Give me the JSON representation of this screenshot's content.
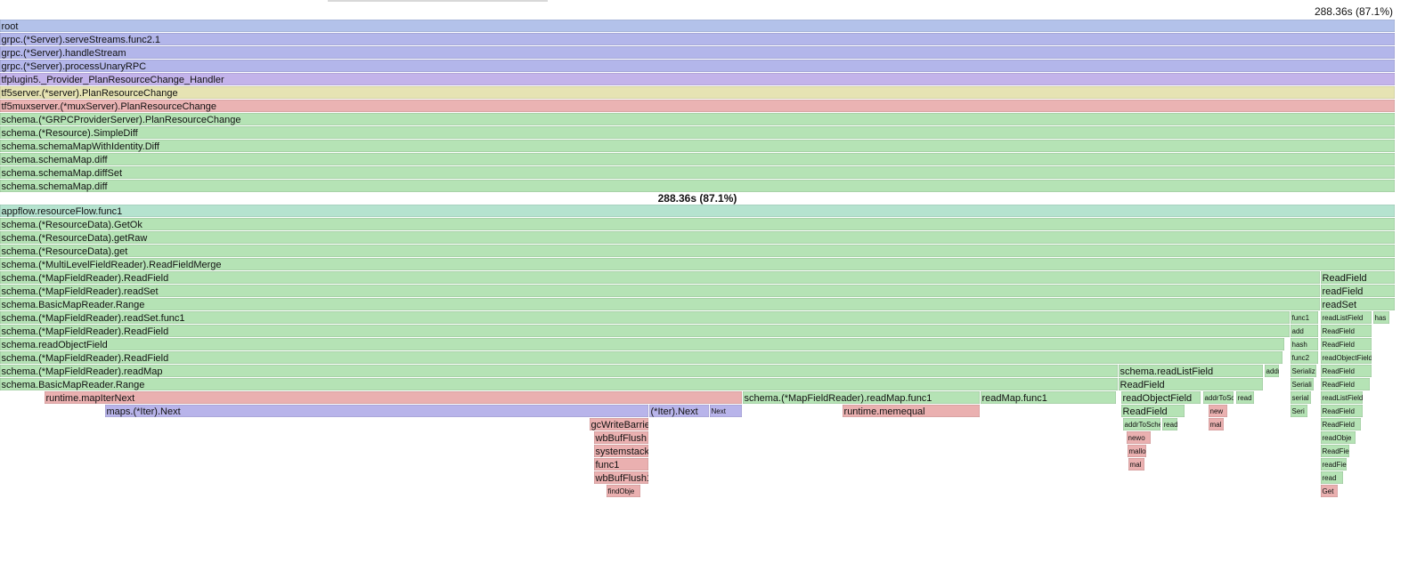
{
  "chart_data": {
    "type": "flame",
    "focus_label": "288.36s (87.1%)",
    "xlim": [
      0,
      288.36
    ],
    "upper": [
      {
        "name": "root",
        "start": 0,
        "value": 288.36,
        "color": "#b3c2ea"
      },
      {
        "name": "grpc.(*Server).serveStreams.func2.1",
        "start": 0,
        "value": 288.36,
        "color": "#b3b6ea"
      },
      {
        "name": "grpc.(*Server).handleStream",
        "start": 0,
        "value": 288.36,
        "color": "#b3b6ea"
      },
      {
        "name": "grpc.(*Server).processUnaryRPC",
        "start": 0,
        "value": 288.36,
        "color": "#b3b6ea"
      },
      {
        "name": "tfplugin5._Provider_PlanResourceChange_Handler",
        "start": 0,
        "value": 288.36,
        "color": "#c3b3ea"
      },
      {
        "name": "tf5server.(*server).PlanResourceChange",
        "start": 0,
        "value": 288.36,
        "color": "#e6e3b3"
      },
      {
        "name": "tf5muxserver.(*muxServer).PlanResourceChange",
        "start": 0,
        "value": 288.36,
        "color": "#eab3b3"
      },
      {
        "name": "schema.(*GRPCProviderServer).PlanResourceChange",
        "start": 0,
        "value": 288.36,
        "color": "#b5e3b5"
      },
      {
        "name": "schema.(*Resource).SimpleDiff",
        "start": 0,
        "value": 288.36,
        "color": "#b5e3b5"
      },
      {
        "name": "schema.schemaMapWithIdentity.Diff",
        "start": 0,
        "value": 288.36,
        "color": "#b5e3b5"
      },
      {
        "name": "schema.schemaMap.diff",
        "start": 0,
        "value": 288.36,
        "color": "#b5e3b5"
      },
      {
        "name": "schema.schemaMap.diffSet",
        "start": 0,
        "value": 288.36,
        "color": "#b5e3b5"
      },
      {
        "name": "schema.schemaMap.diff",
        "start": 0,
        "value": 288.36,
        "color": "#b5e3b5"
      }
    ],
    "rows": [
      [
        {
          "name": "appflow.resourceFlow.func1",
          "start": 0,
          "value": 288.36,
          "color": "#b5e3cf"
        }
      ],
      [
        {
          "name": "schema.(*ResourceData).GetOk",
          "start": 0,
          "value": 288.36,
          "color": "#b5e3b5"
        }
      ],
      [
        {
          "name": "schema.(*ResourceData).getRaw",
          "start": 0,
          "value": 288.36,
          "color": "#b5e3b5"
        }
      ],
      [
        {
          "name": "schema.(*ResourceData).get",
          "start": 0,
          "value": 288.36,
          "color": "#b5e3b5"
        }
      ],
      [
        {
          "name": "schema.(*MultiLevelFieldReader).ReadFieldMerge",
          "start": 0,
          "value": 288.36,
          "color": "#b5e3b5"
        }
      ],
      [
        {
          "name": "schema.(*MapFieldReader).ReadField",
          "start": 0,
          "value": 272.9,
          "color": "#b5e3b5"
        },
        {
          "name": "ReadField",
          "start": 273.08,
          "value": 15.28,
          "color": "#b5e3b5"
        }
      ],
      [
        {
          "name": "schema.(*MapFieldReader).readSet",
          "start": 0,
          "value": 272.9,
          "color": "#b5e3b5"
        },
        {
          "name": "readField",
          "start": 273.08,
          "value": 15.28,
          "color": "#b5e3b5"
        }
      ],
      [
        {
          "name": "schema.BasicMapReader.Range",
          "start": 0,
          "value": 272.9,
          "color": "#b5e3b5"
        },
        {
          "name": "readSet",
          "start": 273.08,
          "value": 15.28,
          "color": "#b5e3b5"
        }
      ],
      [
        {
          "name": "schema.(*MapFieldReader).readSet.func1",
          "start": 0,
          "value": 266.63,
          "color": "#b5e3b5"
        },
        {
          "name": "func1",
          "start": 266.82,
          "value": 5.71,
          "color": "#b5e3b5"
        },
        {
          "name": "readListField",
          "start": 273.08,
          "value": 10.5,
          "color": "#b5e3b5"
        },
        {
          "name": "has",
          "start": 283.94,
          "value": 3.31,
          "color": "#b5e3b5"
        }
      ],
      [
        {
          "name": "schema.(*MapFieldReader).ReadField",
          "start": 0,
          "value": 266.63,
          "color": "#b5e3b5"
        },
        {
          "name": "add",
          "start": 266.82,
          "value": 5.71,
          "color": "#b5e3b5"
        },
        {
          "name": "ReadField",
          "start": 273.08,
          "value": 10.5,
          "color": "#b5e3b5"
        }
      ],
      [
        {
          "name": "schema.readObjectField",
          "start": 0,
          "value": 265.53,
          "color": "#b5e3b5"
        },
        {
          "name": "hash",
          "start": 266.82,
          "value": 5.71,
          "color": "#b5e3b5"
        },
        {
          "name": "ReadField",
          "start": 273.08,
          "value": 10.5,
          "color": "#b5e3b5"
        }
      ],
      [
        {
          "name": "schema.(*MapFieldReader).ReadField",
          "start": 0,
          "value": 265.16,
          "color": "#b5e3b5"
        },
        {
          "name": "func2",
          "start": 266.82,
          "value": 5.71,
          "color": "#b5e3b5"
        },
        {
          "name": "readObjectField",
          "start": 273.08,
          "value": 10.5,
          "color": "#b5e3b5"
        }
      ],
      [
        {
          "name": "schema.(*MapFieldReader).readMap",
          "start": 0,
          "value": 231.1,
          "color": "#b5e3b5"
        },
        {
          "name": "schema.readListField",
          "start": 231.28,
          "value": 29.83,
          "color": "#b5e3b5"
        },
        {
          "name": "addr",
          "start": 261.48,
          "value": 2.95,
          "color": "#b5e3b5"
        },
        {
          "name": "Serializ",
          "start": 266.82,
          "value": 5.34,
          "color": "#b5e3b5"
        },
        {
          "name": "ReadField",
          "start": 273.08,
          "value": 10.5,
          "color": "#b5e3b5"
        }
      ],
      [
        {
          "name": "schema.BasicMapReader.Range",
          "start": 0,
          "value": 231.1,
          "color": "#b5e3b5"
        },
        {
          "name": "ReadField",
          "start": 231.28,
          "value": 29.83,
          "color": "#b5e3b5"
        },
        {
          "name": "Seriali",
          "start": 266.82,
          "value": 4.79,
          "color": "#b5e3b5"
        },
        {
          "name": "ReadField",
          "start": 273.08,
          "value": 10.13,
          "color": "#b5e3b5"
        }
      ],
      [
        {
          "name": "runtime.mapIterNext",
          "start": 9.21,
          "value": 144.18,
          "color": "#eab0b0"
        },
        {
          "name": "schema.(*MapFieldReader).readMap.func1",
          "start": 153.57,
          "value": 48.98,
          "color": "#b5e3b5"
        },
        {
          "name": "readMap.func1",
          "start": 202.74,
          "value": 27.99,
          "color": "#b5e3b5"
        },
        {
          "name": "readObjectField",
          "start": 231.83,
          "value": 16.39,
          "color": "#b5e3b5"
        },
        {
          "name": "addrToSc",
          "start": 248.77,
          "value": 6.26,
          "color": "#b5e3b5"
        },
        {
          "name": "read",
          "start": 255.59,
          "value": 3.68,
          "color": "#b5e3b5"
        },
        {
          "name": "serial",
          "start": 266.82,
          "value": 4.24,
          "color": "#b5e3b5"
        },
        {
          "name": "readListField",
          "start": 273.08,
          "value": 8.65,
          "color": "#b5e3b5"
        }
      ],
      [
        {
          "name": "maps.(*Iter).Next",
          "start": 21.73,
          "value": 112.33,
          "color": "#b8b4ea"
        },
        {
          "name": "(*Iter).Next",
          "start": 134.24,
          "value": 12.34,
          "color": "#b8b4ea"
        },
        {
          "name": "Next",
          "start": 146.76,
          "value": 6.63,
          "color": "#b8b4ea"
        },
        {
          "name": "runtime.memequal",
          "start": 174.2,
          "value": 28.36,
          "color": "#eab0b0"
        },
        {
          "name": "ReadField",
          "start": 231.83,
          "value": 13.07,
          "color": "#b5e3b5"
        },
        {
          "name": "new",
          "start": 249.88,
          "value": 3.87,
          "color": "#eab0b0"
        },
        {
          "name": "Seri",
          "start": 266.82,
          "value": 3.5,
          "color": "#b5e3b5"
        },
        {
          "name": "ReadField",
          "start": 273.08,
          "value": 8.65,
          "color": "#b5e3b5"
        }
      ],
      [
        {
          "name": "gcWriteBarrier",
          "start": 121.9,
          "value": 12.15,
          "color": "#eab0b0"
        },
        {
          "name": "addrToSche",
          "start": 232.2,
          "value": 7.73,
          "color": "#b5e3b5"
        },
        {
          "name": "read",
          "start": 240.3,
          "value": 3.13,
          "color": "#b5e3b5"
        },
        {
          "name": "mal",
          "start": 249.88,
          "value": 3.13,
          "color": "#eab0b0"
        },
        {
          "name": "ReadField",
          "start": 273.08,
          "value": 8.29,
          "color": "#b5e3b5"
        }
      ],
      [
        {
          "name": "wbBufFlush",
          "start": 122.82,
          "value": 11.23,
          "color": "#eab0b0"
        },
        {
          "name": "newo",
          "start": 232.94,
          "value": 4.97,
          "color": "#eab0b0"
        },
        {
          "name": "readObje",
          "start": 273.08,
          "value": 7.18,
          "color": "#b5e3b5"
        }
      ],
      [
        {
          "name": "systemstack",
          "start": 122.82,
          "value": 11.23,
          "color": "#eab0b0"
        },
        {
          "name": "mallo",
          "start": 233.12,
          "value": 3.87,
          "color": "#eab0b0"
        },
        {
          "name": "ReadFie",
          "start": 273.08,
          "value": 5.89,
          "color": "#b5e3b5"
        }
      ],
      [
        {
          "name": "func1",
          "start": 122.82,
          "value": 11.23,
          "color": "#eab0b0"
        },
        {
          "name": "mal",
          "start": 233.31,
          "value": 3.31,
          "color": "#eab0b0"
        },
        {
          "name": "readFiel",
          "start": 273.08,
          "value": 5.34,
          "color": "#b5e3b5"
        }
      ],
      [
        {
          "name": "wbBufFlush1",
          "start": 122.82,
          "value": 11.23,
          "color": "#eab0b0"
        },
        {
          "name": "read",
          "start": 273.08,
          "value": 4.6,
          "color": "#b5e3b5"
        }
      ],
      [
        {
          "name": "findObje",
          "start": 125.4,
          "value": 7.0,
          "color": "#eab0b0"
        },
        {
          "name": "Get",
          "start": 273.08,
          "value": 3.5,
          "color": "#eab0b0"
        }
      ]
    ]
  }
}
